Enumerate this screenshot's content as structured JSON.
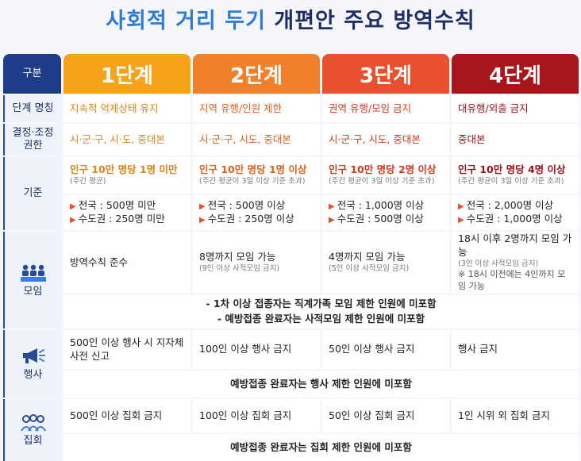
{
  "title": {
    "part1": "사회적 거리 두기",
    "part2": "개편안 주요 방역수칙"
  },
  "colors": {
    "stage1": "#f7a21a",
    "stage2": "#f0802c",
    "stage3": "#e8502e",
    "stage4": "#a8161c",
    "navy": "#1f3c88"
  },
  "labels": {
    "category": "구분",
    "stage_name": "단계 명칭",
    "decision_line1": "결정·조정",
    "decision_line2": "권한",
    "criteria": "기준",
    "gathering": "모임",
    "event": "행사",
    "assembly": "집회"
  },
  "icons": {
    "gathering": "people-group-icon",
    "event": "megaphone-icon",
    "assembly": "crowd-icon"
  },
  "stages": [
    {
      "header": "1단계",
      "name": "지속적 억제상태 유지",
      "authority": "시·군·구, 시·도, 중대본",
      "criteria_main": "인구 10만 명당 1명 미만",
      "criteria_sub": "(주간 평균)",
      "nation": "전국 : 500명 미만",
      "capital": "수도권 : 250명 미만",
      "gathering": "방역수칙 준수",
      "gathering_sub": "",
      "event": "500인 이상 행사 시 지자체 사전 신고",
      "assembly": "500인 이상 집회 금지"
    },
    {
      "header": "2단계",
      "name": "지역 유행/인원 제한",
      "authority": "시·군·구, 시도, 중대본",
      "criteria_main": "인구 10만 명당 1명 이상",
      "criteria_sub": "(주간 평균이 3일 이상 기준 초과)",
      "nation": "전국 : 500명 이상",
      "capital": "수도권 : 250명 이상",
      "gathering": "8명까지 모임 가능",
      "gathering_sub": "(9인 이상 사적모임 금지)",
      "event": "100인 이상 행사 금지",
      "assembly": "100인 이상 집회 금지"
    },
    {
      "header": "3단계",
      "name": "권역 유행/모임 금지",
      "authority": "시·군·구, 시도, 중대본",
      "criteria_main": "인구 10만 명당 2명 이상",
      "criteria_sub": "(주간 평균이 3일 이상 기준 초과)",
      "nation": "전국 : 1,000명 이상",
      "capital": "수도권 : 500명 이상",
      "gathering": "4명까지 모임 가능",
      "gathering_sub": "(5인 이상 사적모임 금지)",
      "event": "50인 이상 행사 금지",
      "assembly": "50인 이상 집회 금지"
    },
    {
      "header": "4단계",
      "name": "대유행/외출 금지",
      "authority": "중대본",
      "criteria_main": "인구 10만 명당 4명 이상",
      "criteria_sub": "(주간 평균이 3일 이상 기준 초과)",
      "nation": "전국 : 2,000명 이상",
      "capital": "수도권 : 1,000명 이상",
      "gathering": "18시 이후 2명까지 모임 가능",
      "gathering_sub": "(3인 이상 사적모임 금지)",
      "gathering_note": "※ 18시 이전에는 4인까지 모임 가능",
      "event": "행사 금지",
      "assembly": "1인 시위 외 집회 금지"
    }
  ],
  "notes": {
    "gathering_1": "- 1차 이상 접종자는 직계가족 모임 제한 인원에 미포함",
    "gathering_2": "- 예방접종 완료자는 사적모임 제한 인원에 미포함",
    "event": "예방접종 완료자는 행사 제한 인원에 미포함",
    "assembly": "예방접종 완료자는 집회 제한 인원에 미포함"
  }
}
